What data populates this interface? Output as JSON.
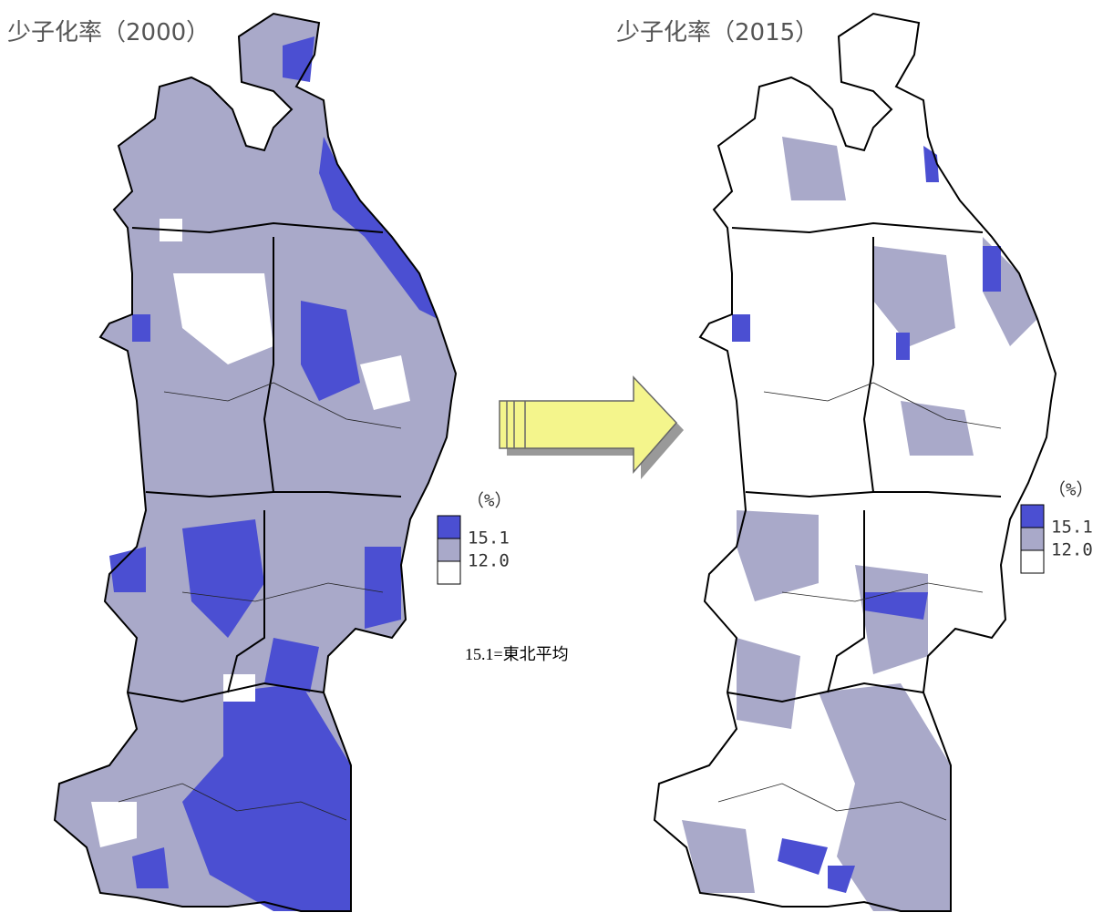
{
  "maps": [
    {
      "title": "少子化率（2000）",
      "legend": {
        "unit": "（%）",
        "thresholds": [
          "15.1",
          "12.0"
        ]
      }
    },
    {
      "title": "少子化率（2015）",
      "legend": {
        "unit": "（%）",
        "thresholds": [
          "15.1",
          "12.0"
        ]
      }
    }
  ],
  "note": "15.1=東北平均"
}
